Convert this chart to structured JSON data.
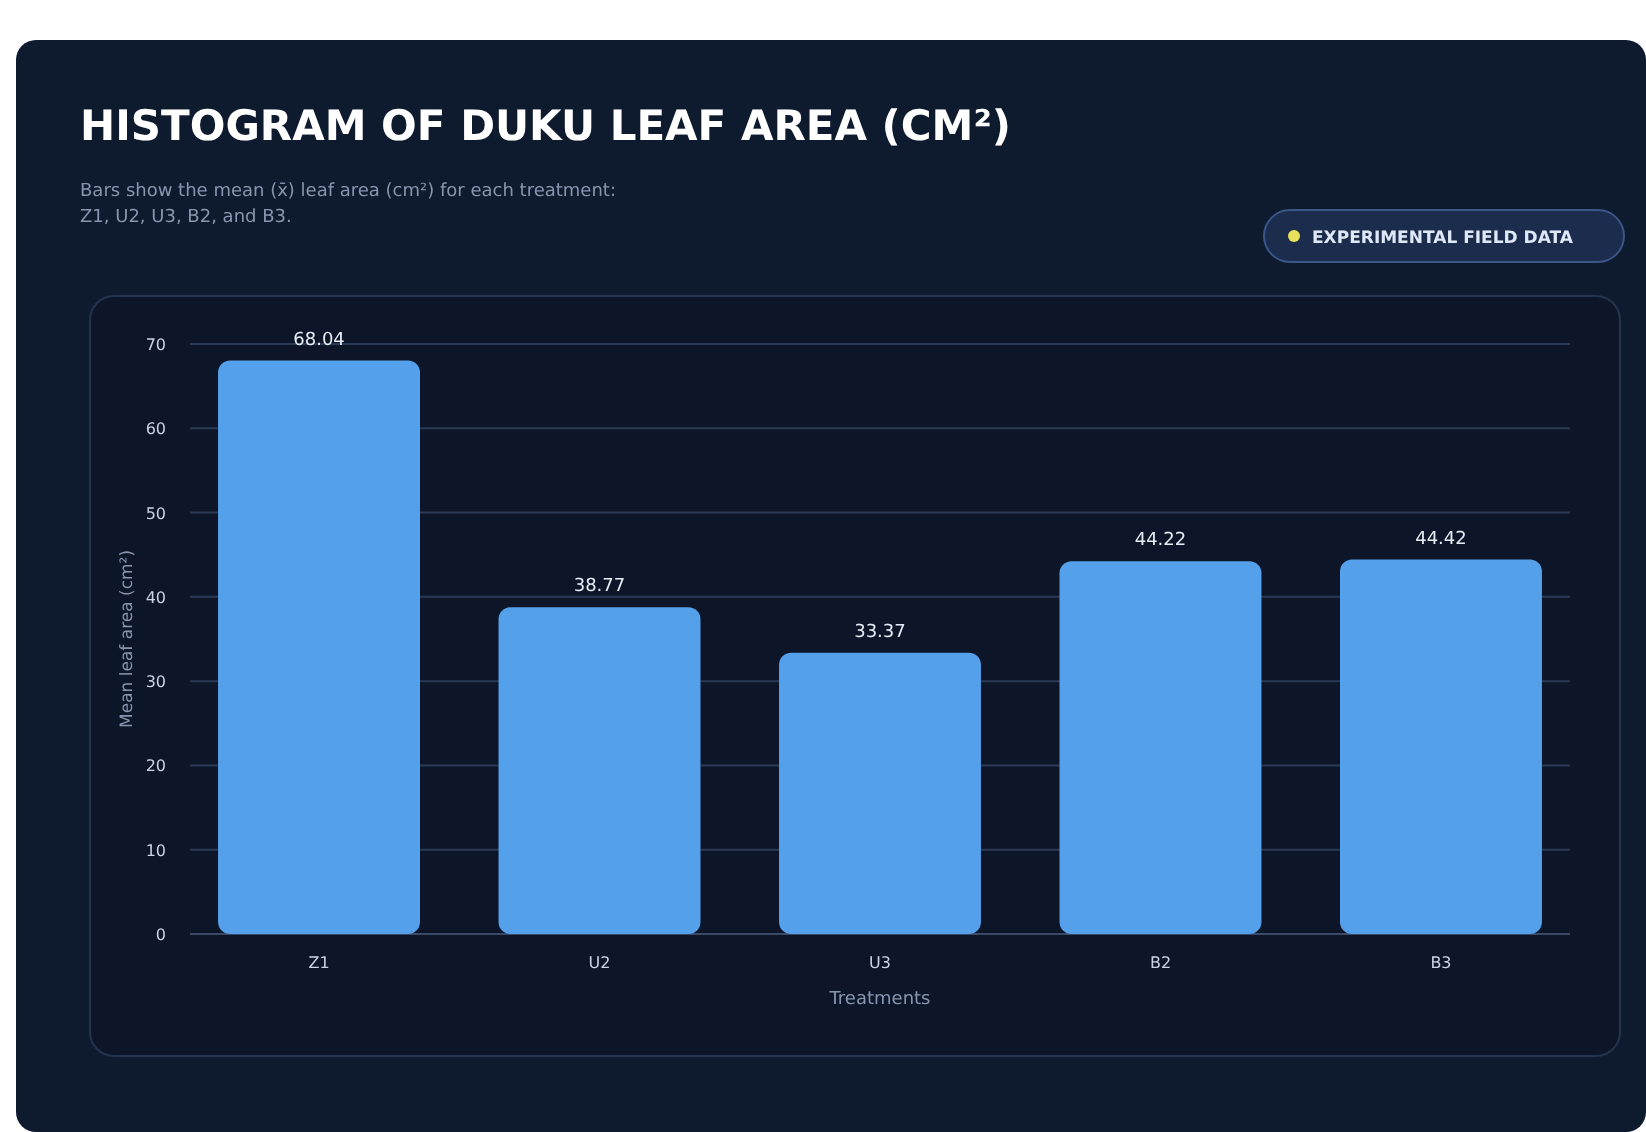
{
  "chart_data": {
    "type": "bar",
    "title": "HISTOGRAM OF DUKU LEAF AREA (CM²)",
    "subtitle": "Bars show the mean (x̄) leaf area (cm²) for each treatment: Z1, U2, U3, B2, and B3.",
    "annotations": [
      "EXPERIMENTAL FIELD DATA"
    ],
    "xlabel": "Treatments",
    "ylabel": "Mean leaf area (cm²)",
    "categories": [
      "Z1",
      "U2",
      "U3",
      "B2",
      "B3"
    ],
    "values": [
      68.04,
      38.77,
      33.37,
      44.22,
      44.42
    ],
    "color": "#55a0ea",
    "ylim": [
      0,
      70
    ],
    "yticks": [
      0,
      10,
      20,
      30,
      40,
      50,
      60,
      70
    ],
    "grid": "y",
    "data_labels": true
  }
}
